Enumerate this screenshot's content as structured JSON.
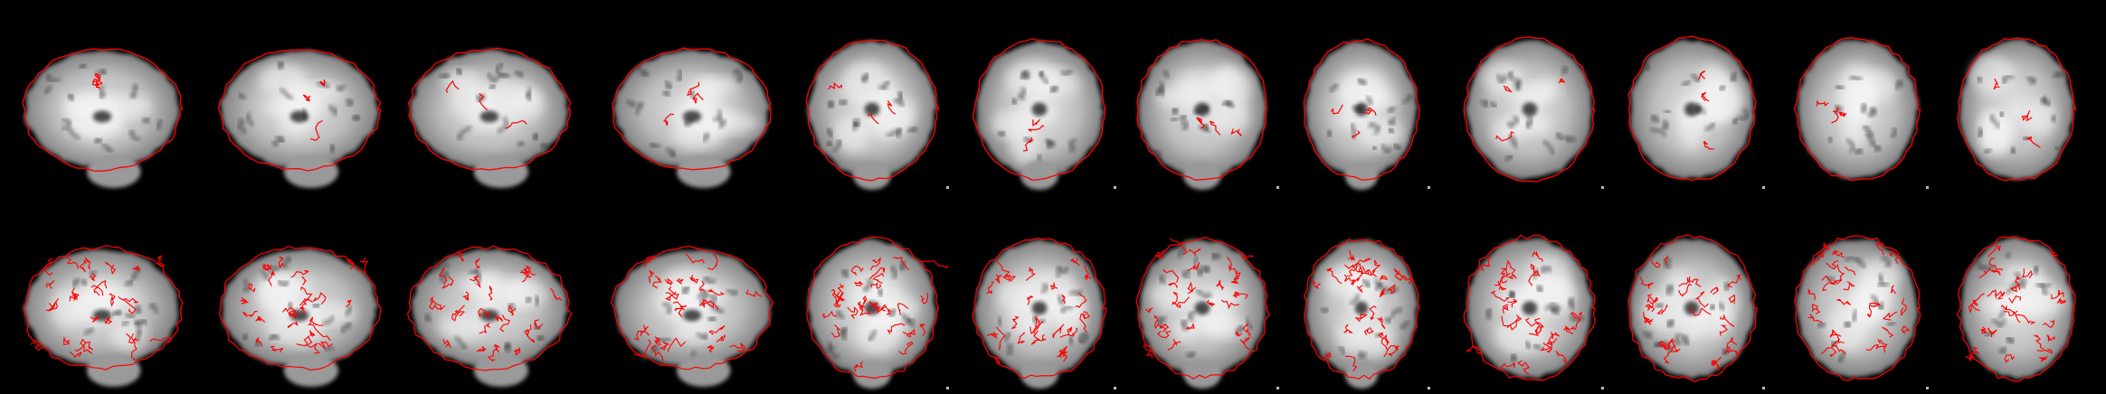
{
  "figure": {
    "background": "#000000",
    "overlay_color": "#ff0000",
    "rows": [
      {
        "name": "registration-outline",
        "contour_style": "brain-outline",
        "views": [
          "sagittal",
          "sagittal",
          "sagittal",
          "sagittal",
          "coronal",
          "coronal",
          "coronal",
          "coronal",
          "axial",
          "axial",
          "axial",
          "axial"
        ]
      },
      {
        "name": "tissue-boundary",
        "contour_style": "gyral-boundary",
        "views": [
          "sagittal",
          "sagittal",
          "sagittal",
          "sagittal",
          "coronal",
          "coronal",
          "coronal",
          "coronal",
          "axial",
          "axial",
          "axial",
          "axial"
        ]
      }
    ]
  }
}
